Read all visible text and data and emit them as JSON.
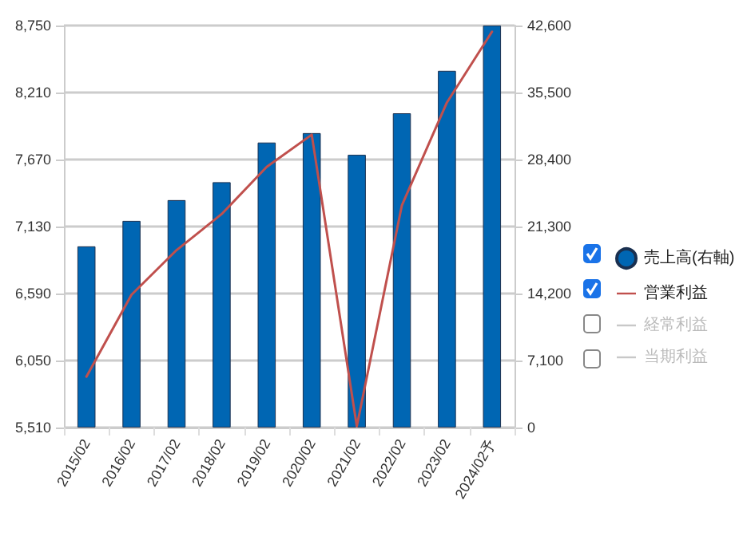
{
  "chart_data": {
    "type": "bar",
    "categories": [
      "2015/02",
      "2016/02",
      "2017/02",
      "2018/02",
      "2019/02",
      "2020/02",
      "2021/02",
      "2022/02",
      "2023/02",
      "2024/02予"
    ],
    "series": [
      {
        "name": "売上高(右軸)",
        "axis": "y2",
        "color": "#0066b3",
        "values": [
          19200,
          21900,
          24100,
          26000,
          30200,
          31200,
          28900,
          33300,
          37800,
          42600
        ]
      },
      {
        "name": "営業利益",
        "type": "line",
        "color": "#c0504d",
        "values": [
          5920,
          6580,
          6940,
          7230,
          7610,
          7870,
          5520,
          7300,
          8130,
          8700
        ]
      },
      {
        "name": "経常利益",
        "type": "line",
        "color": "#c8c8c8",
        "values": [
          null,
          null,
          null,
          null,
          null,
          null,
          null,
          null,
          null,
          null
        ]
      },
      {
        "name": "当期利益",
        "type": "line",
        "color": "#c8c8c8",
        "values": [
          null,
          null,
          null,
          null,
          null,
          null,
          null,
          null,
          null,
          null
        ]
      }
    ],
    "ylim": [
      5510,
      8750
    ],
    "yticks": [
      {
        "value": 5510,
        "label": "5,510"
      },
      {
        "value": 6050,
        "label": "6,050"
      },
      {
        "value": 6590,
        "label": "6,590"
      },
      {
        "value": 7130,
        "label": "7,130"
      },
      {
        "value": 7670,
        "label": "7,670"
      },
      {
        "value": 8210,
        "label": "8,210"
      },
      {
        "value": 8750,
        "label": "8,750"
      }
    ],
    "y2lim": [
      0,
      42600
    ],
    "y2ticks": [
      0,
      {
        "value": 7100,
        "label": "7,100"
      },
      {
        "value": 14200,
        "label": "14,200"
      },
      {
        "value": 21300,
        "label": "21,300"
      },
      {
        "value": 28400,
        "label": "28,400"
      },
      {
        "value": 35500,
        "label": "35,500"
      },
      {
        "value": 42600,
        "label": "42,600"
      }
    ],
    "grid": "y",
    "legend": "right",
    "marker": "none",
    "line_style": "solid"
  }
}
